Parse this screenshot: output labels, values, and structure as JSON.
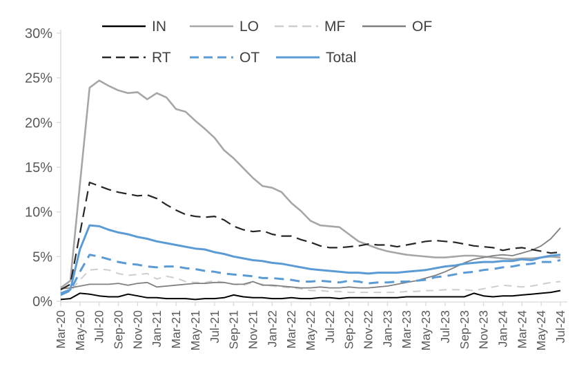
{
  "chart_data": {
    "type": "line",
    "title": "",
    "xlabel": "",
    "ylabel": "",
    "ylim": [
      0,
      30
    ],
    "yticks": [
      0,
      5,
      10,
      15,
      20,
      25,
      30
    ],
    "ytick_suffix": "%",
    "x_tick_step": 2,
    "grid": false,
    "legend_position": "top",
    "x": [
      "Mar-20",
      "Apr-20",
      "May-20",
      "Jun-20",
      "Jul-20",
      "Aug-20",
      "Sep-20",
      "Oct-20",
      "Nov-20",
      "Dec-20",
      "Jan-21",
      "Feb-21",
      "Mar-21",
      "Apr-21",
      "May-21",
      "Jun-21",
      "Jul-21",
      "Aug-21",
      "Sep-21",
      "Oct-21",
      "Nov-21",
      "Dec-21",
      "Jan-22",
      "Feb-22",
      "Mar-22",
      "Apr-22",
      "May-22",
      "Jun-22",
      "Jul-22",
      "Aug-22",
      "Sep-22",
      "Oct-22",
      "Nov-22",
      "Dec-22",
      "Jan-23",
      "Feb-23",
      "Mar-23",
      "Apr-23",
      "May-23",
      "Jun-23",
      "Jul-23",
      "Aug-23",
      "Sep-23",
      "Oct-23",
      "Nov-23",
      "Dec-23",
      "Jan-24",
      "Feb-24",
      "Mar-24",
      "Apr-24",
      "May-24",
      "Jun-24",
      "Jul-24"
    ],
    "x_tick_labels": [
      "Mar-20",
      "May-20",
      "Jul-20",
      "Sep-20",
      "Nov-20",
      "Jan-21",
      "Mar-21",
      "May-21",
      "Jul-21",
      "Sep-21",
      "Nov-21",
      "Jan-22",
      "Mar-22",
      "May-22",
      "Jul-22",
      "Sep-22",
      "Nov-22",
      "Jan-23",
      "Mar-23",
      "May-23",
      "Jul-23",
      "Sep-23",
      "Nov-23",
      "Jan-24",
      "Mar-24",
      "May-24",
      "Jul-24"
    ],
    "series": [
      {
        "name": "IN",
        "color": "#000000",
        "width": 2,
        "dash": "",
        "values": [
          0.2,
          0.3,
          0.9,
          0.8,
          0.6,
          0.5,
          0.5,
          0.8,
          0.6,
          0.4,
          0.4,
          0.3,
          0.3,
          0.3,
          0.2,
          0.3,
          0.3,
          0.4,
          0.7,
          0.5,
          0.4,
          0.4,
          0.3,
          0.3,
          0.4,
          0.3,
          0.3,
          0.4,
          0.4,
          0.3,
          0.4,
          0.4,
          0.4,
          0.4,
          0.4,
          0.4,
          0.5,
          0.5,
          0.5,
          0.5,
          0.5,
          0.5,
          0.5,
          0.9,
          0.6,
          0.5,
          0.6,
          0.6,
          0.7,
          0.8,
          0.9,
          1.0,
          1.2
        ]
      },
      {
        "name": "LO",
        "color": "#a6a6a6",
        "width": 2.6,
        "dash": "",
        "values": [
          1.5,
          2.3,
          13.1,
          23.9,
          24.7,
          24.1,
          23.6,
          23.3,
          23.4,
          22.6,
          23.3,
          22.8,
          21.5,
          21.2,
          20.2,
          19.3,
          18.3,
          16.9,
          16.0,
          14.9,
          13.8,
          12.9,
          12.7,
          12.2,
          11.0,
          10.1,
          9.0,
          8.5,
          8.4,
          8.3,
          7.5,
          6.7,
          6.3,
          5.9,
          5.6,
          5.4,
          5.2,
          5.1,
          5.0,
          4.9,
          4.9,
          5.0,
          5.1,
          5.1,
          5.0,
          4.9,
          4.8,
          4.7,
          4.8,
          4.8,
          4.9,
          5.0,
          4.9
        ]
      },
      {
        "name": "MF",
        "color": "#cfcdcd",
        "width": 2,
        "dash": "11 8",
        "values": [
          0.9,
          1.1,
          2.4,
          3.5,
          3.6,
          3.5,
          3.1,
          2.9,
          3.0,
          3.1,
          2.5,
          2.8,
          2.6,
          2.2,
          2.1,
          2.1,
          2.3,
          2.1,
          1.9,
          1.8,
          2.1,
          1.9,
          1.7,
          1.6,
          1.5,
          1.4,
          1.2,
          1.2,
          1.1,
          1.1,
          1.0,
          1.0,
          1.0,
          1.0,
          1.0,
          1.0,
          1.1,
          1.1,
          1.2,
          1.2,
          1.3,
          1.3,
          1.3,
          1.2,
          1.4,
          1.6,
          1.8,
          1.7,
          1.6,
          1.7,
          1.9,
          2.1,
          2.2
        ]
      },
      {
        "name": "OF",
        "color": "#7f7f7f",
        "width": 1.8,
        "dash": "",
        "values": [
          1.4,
          1.5,
          1.7,
          1.9,
          1.9,
          1.9,
          2.0,
          1.8,
          2.0,
          2.1,
          1.6,
          1.7,
          1.8,
          1.9,
          2.0,
          2.0,
          2.1,
          2.1,
          1.9,
          1.9,
          2.2,
          1.8,
          1.8,
          1.7,
          1.6,
          1.5,
          1.5,
          1.6,
          1.5,
          1.5,
          1.6,
          1.5,
          1.5,
          1.6,
          1.7,
          1.9,
          2.1,
          2.3,
          2.6,
          2.9,
          3.3,
          3.8,
          4.3,
          4.7,
          4.9,
          5.1,
          5.2,
          5.1,
          5.4,
          5.7,
          6.2,
          7.0,
          8.2
        ]
      },
      {
        "name": "RT",
        "color": "#262626",
        "width": 2.2,
        "dash": "15 8",
        "values": [
          1.3,
          1.9,
          7.6,
          13.3,
          12.9,
          12.5,
          12.2,
          12.0,
          11.8,
          11.9,
          11.5,
          10.8,
          10.2,
          9.7,
          9.5,
          9.4,
          9.5,
          9.1,
          8.4,
          8.0,
          7.8,
          7.9,
          7.5,
          7.3,
          7.3,
          6.9,
          6.6,
          6.2,
          6.0,
          6.0,
          6.1,
          6.2,
          6.4,
          6.3,
          6.3,
          6.1,
          6.3,
          6.5,
          6.7,
          6.8,
          6.7,
          6.6,
          6.4,
          6.2,
          6.1,
          6.0,
          5.7,
          5.9,
          6.0,
          5.8,
          5.6,
          5.4,
          5.5
        ]
      },
      {
        "name": "OT",
        "color": "#5b9bd5",
        "width": 3,
        "dash": "14 9",
        "values": [
          0.7,
          1.2,
          3.3,
          5.2,
          5.0,
          4.7,
          4.4,
          4.2,
          4.1,
          3.9,
          3.8,
          3.9,
          3.9,
          3.7,
          3.6,
          3.4,
          3.3,
          3.1,
          3.0,
          2.9,
          2.8,
          2.6,
          2.6,
          2.5,
          2.4,
          2.2,
          2.2,
          2.3,
          2.2,
          2.1,
          2.3,
          2.2,
          2.0,
          2.1,
          2.1,
          2.2,
          2.2,
          2.3,
          2.4,
          2.7,
          2.8,
          3.0,
          3.2,
          3.3,
          3.5,
          3.6,
          3.8,
          3.9,
          4.1,
          4.2,
          4.4,
          4.4,
          4.6
        ]
      },
      {
        "name": "Total",
        "color": "#5b9bd5",
        "width": 3,
        "dash": "",
        "values": [
          0.9,
          1.3,
          5.8,
          8.5,
          8.4,
          8.0,
          7.7,
          7.5,
          7.2,
          7.0,
          6.7,
          6.5,
          6.3,
          6.1,
          5.9,
          5.8,
          5.5,
          5.3,
          5.0,
          4.8,
          4.6,
          4.5,
          4.3,
          4.2,
          4.0,
          3.8,
          3.6,
          3.5,
          3.4,
          3.3,
          3.2,
          3.2,
          3.1,
          3.2,
          3.2,
          3.2,
          3.3,
          3.4,
          3.5,
          3.7,
          3.9,
          4.0,
          4.2,
          4.3,
          4.4,
          4.4,
          4.5,
          4.5,
          4.7,
          4.6,
          4.9,
          5.1,
          5.2
        ]
      }
    ]
  },
  "legend": {
    "rows": [
      [
        "IN",
        "LO",
        "MF",
        "OF"
      ],
      [
        "RT",
        "OT",
        "Total"
      ]
    ]
  },
  "colors": {
    "axis": "#d9d9d9",
    "tick_label": "#595959",
    "legend_text": "#404040",
    "background": "#ffffff"
  }
}
